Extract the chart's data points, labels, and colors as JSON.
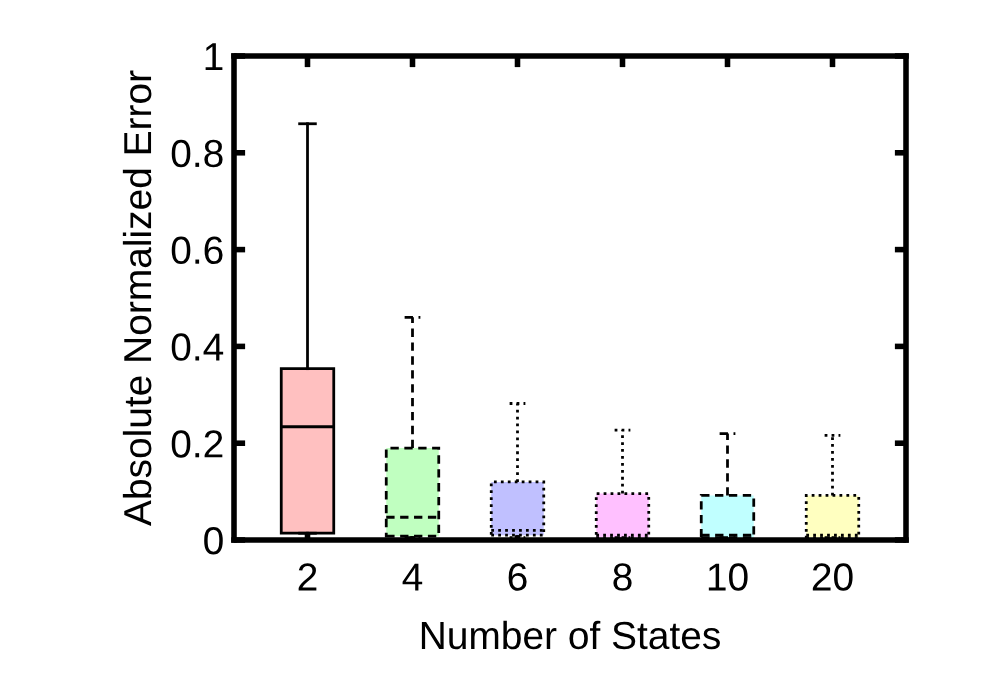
{
  "chart_data": {
    "type": "box",
    "xlabel": "Number of States",
    "ylabel": "Absolute Normalized Error",
    "categories": [
      "2",
      "4",
      "6",
      "8",
      "10",
      "20"
    ],
    "ylim": [
      0,
      1
    ],
    "yticks": [
      0,
      0.2,
      0.4,
      0.6,
      0.8,
      1
    ],
    "grid": false,
    "legend": false,
    "series": [
      {
        "color": "#ffc0c0",
        "line_style": "solid",
        "boxes": [
          {
            "low": 0.014,
            "q1": 0.014,
            "median": 0.234,
            "q3": 0.354,
            "high": 0.86
          },
          null,
          null,
          null,
          null,
          null
        ]
      },
      {
        "color": "#c0ffc0",
        "line_style": "dashed",
        "boxes": [
          null,
          {
            "low": 0.005,
            "q1": 0.008,
            "median": 0.047,
            "q3": 0.19,
            "high": 0.46
          },
          null,
          null,
          null,
          null
        ]
      },
      {
        "color": "#c0c0ff",
        "line_style": "dotted",
        "boxes": [
          null,
          null,
          {
            "low": 0.005,
            "q1": 0.01,
            "median": 0.02,
            "q3": 0.12,
            "high": 0.282
          },
          null,
          null,
          null
        ]
      },
      {
        "color": "#ffc0ff",
        "line_style": "dotted",
        "boxes": [
          null,
          null,
          null,
          {
            "low": 0.005,
            "q1": 0.005,
            "median": 0.01,
            "q3": 0.096,
            "high": 0.227
          },
          null,
          null
        ]
      },
      {
        "color": "#c0ffff",
        "line_style": "dashed",
        "boxes": [
          null,
          null,
          null,
          null,
          {
            "low": 0.005,
            "q1": 0.005,
            "median": 0.01,
            "q3": 0.092,
            "high": 0.22
          },
          null
        ]
      },
      {
        "color": "#ffffc0",
        "line_style": "dotted",
        "boxes": [
          null,
          null,
          null,
          null,
          null,
          {
            "low": 0.005,
            "q1": 0.005,
            "median": 0.01,
            "q3": 0.092,
            "high": 0.216
          }
        ]
      }
    ]
  }
}
